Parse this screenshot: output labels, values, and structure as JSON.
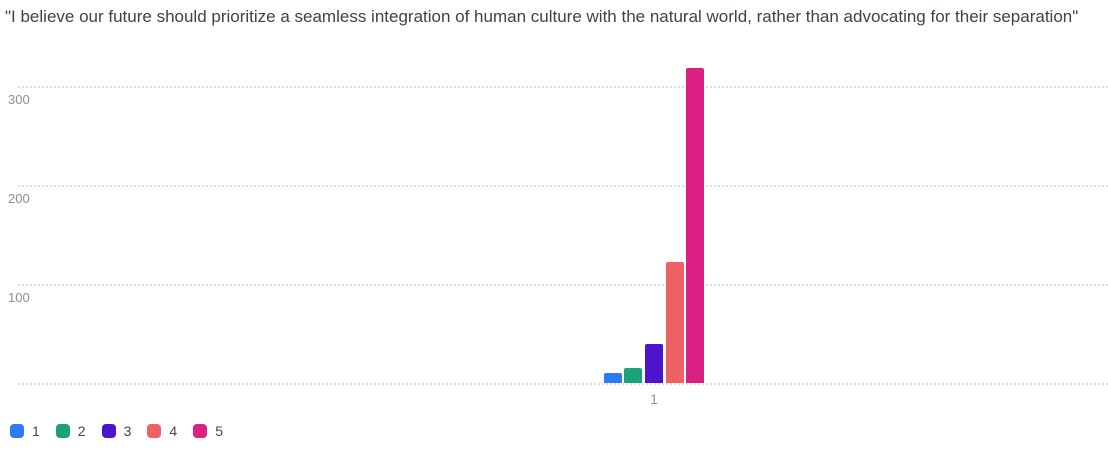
{
  "title": "\"I believe our future should prioritize a seamless integration of human culture with the natural world, rather than advocating for their separation\"",
  "colors": {
    "background": "#ffffff",
    "title_text": "#3d434a",
    "axis_label_text": "#8e8e8e",
    "legend_label_text": "#44484d",
    "gridline": "#dedede"
  },
  "chart_data": {
    "type": "bar",
    "title": "\"I believe our future should prioritize a seamless integration of human culture with the natural world, rather than advocating for their separation\"",
    "categories": [
      "1"
    ],
    "series": [
      {
        "name": "1",
        "color": "#2d7cf5",
        "values": [
          10
        ]
      },
      {
        "name": "2",
        "color": "#1aa37b",
        "values": [
          15
        ]
      },
      {
        "name": "3",
        "color": "#4c14cb",
        "values": [
          39
        ]
      },
      {
        "name": "4",
        "color": "#ee6165",
        "values": [
          122
        ]
      },
      {
        "name": "5",
        "color": "#da2183",
        "values": [
          318
        ]
      }
    ],
    "xlabel": "",
    "ylabel": "",
    "ylim": [
      0,
      325
    ],
    "yticks": [
      0,
      100,
      200,
      300
    ],
    "ytick_labels": [
      "",
      "100",
      "200",
      "300"
    ],
    "grid": "dotted horizontal lines",
    "legend_position": "bottom-left",
    "legend_entries": [
      "1",
      "2",
      "3",
      "4",
      "5"
    ]
  }
}
